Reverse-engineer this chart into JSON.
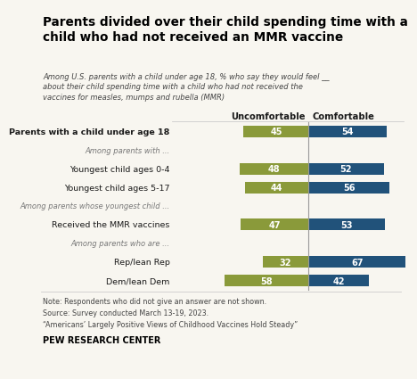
{
  "title": "Parents divided over their child spending time with a\nchild who had not received an MMR vaccine",
  "subtitle": "Among U.S. parents with a child under age 18, % who say they would feel __\nabout their child spending time with a child who had not received the\nvaccines for measles, mumps and rubella (MMR)",
  "col_header_uncomfortable": "Uncomfortable",
  "col_header_comfortable": "Comfortable",
  "categories": [
    "Parents with a child under age 18",
    "Among parents with ...",
    "Youngest child ages 0-4",
    "Youngest child ages 5-17",
    "Among parents whose youngest child ...",
    "Received the MMR vaccines",
    "Among parents who are ...",
    "Rep/lean Rep",
    "Dem/lean Dem"
  ],
  "is_section": [
    false,
    true,
    false,
    false,
    true,
    false,
    true,
    false,
    false
  ],
  "is_bold": [
    true,
    false,
    false,
    false,
    false,
    false,
    false,
    false,
    false
  ],
  "uncomfortable": [
    45,
    null,
    48,
    44,
    null,
    47,
    null,
    32,
    58
  ],
  "comfortable": [
    54,
    null,
    52,
    56,
    null,
    53,
    null,
    67,
    42
  ],
  "uncomfortable_color": "#8a9a3a",
  "comfortable_color": "#21527a",
  "divider_color": "#999999",
  "note_lines": [
    "Note: Respondents who did not give an answer are not shown.",
    "Source: Survey conducted March 13-19, 2023.",
    "“Americans’ Largely Positive Views of Childhood Vaccines Hold Steady”"
  ],
  "source_label": "PEW RESEARCH CENTER",
  "bg_color": "#f8f6f0",
  "title_color": "#000000",
  "subtitle_color": "#444444",
  "label_color": "#1a1a1a",
  "section_color": "#777777",
  "note_color": "#444444"
}
